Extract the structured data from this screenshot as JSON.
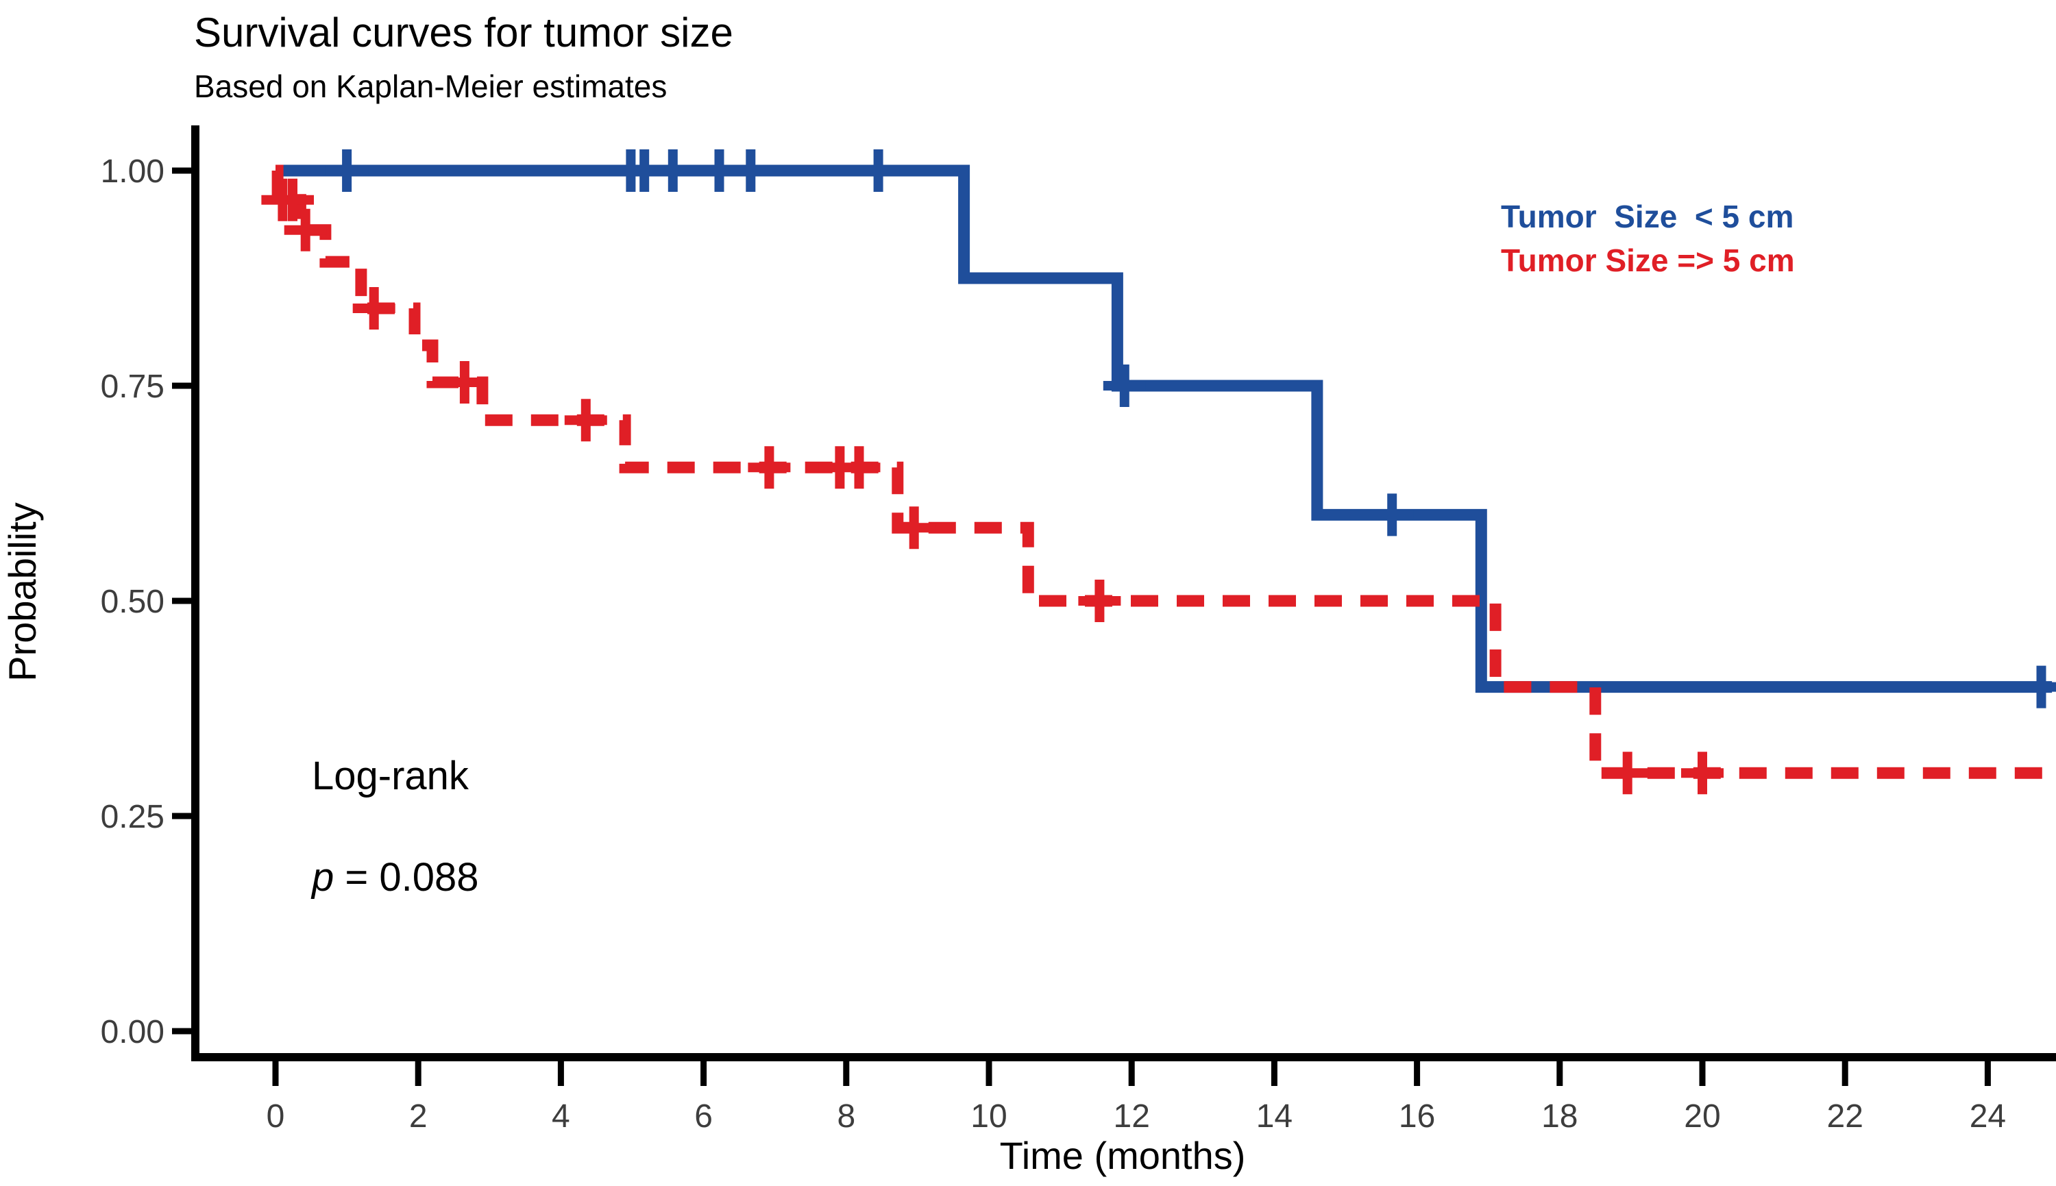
{
  "chart_data": {
    "type": "line",
    "subtype": "kaplan-meier-step",
    "title": "Survival curves for tumor size",
    "subtitle": "Based on Kaplan-Meier estimates",
    "xlabel": "Time (months)",
    "ylabel": "Probability",
    "xlim": [
      -1.1,
      25.0
    ],
    "ylim": [
      0,
      1.0
    ],
    "x_ticks": [
      0,
      2,
      4,
      6,
      8,
      10,
      12,
      14,
      16,
      18,
      20,
      22,
      24
    ],
    "y_ticks": [
      {
        "value": 1.0,
        "label": "1.00"
      },
      {
        "value": 0.75,
        "label": "0.75"
      },
      {
        "value": 0.5,
        "label": "0.50"
      },
      {
        "value": 0.25,
        "label": "0.25"
      },
      {
        "value": 0.0,
        "label": "0.00"
      }
    ],
    "grid": false,
    "legend_position": "inside-top-right",
    "annotation": {
      "line1": "Log-rank",
      "p_symbol": "p",
      "p_value": " = 0.088"
    },
    "series": [
      {
        "name": "Tumor  Size  < 5 cm",
        "color": "#1f4e9b",
        "line_style": "solid",
        "steps": [
          [
            0,
            1
          ],
          [
            9.65,
            1
          ],
          [
            9.65,
            0.875
          ],
          [
            11.8,
            0.875
          ],
          [
            11.8,
            0.75
          ],
          [
            14.6,
            0.75
          ],
          [
            14.6,
            0.6
          ],
          [
            16.9,
            0.6
          ],
          [
            16.9,
            0.4
          ],
          [
            24.9,
            0.4
          ]
        ],
        "censor_marks": [
          [
            1.0,
            1
          ],
          [
            4.98,
            1
          ],
          [
            5.17,
            1
          ],
          [
            5.57,
            1
          ],
          [
            6.22,
            1
          ],
          [
            6.66,
            1
          ],
          [
            8.45,
            1
          ],
          [
            11.9,
            0.75
          ],
          [
            15.65,
            0.6
          ],
          [
            24.75,
            0.4
          ]
        ]
      },
      {
        "name": "Tumor Size => 5 cm",
        "color": "#e01f26",
        "line_style": "dashed",
        "steps": [
          [
            0,
            1
          ],
          [
            0.03,
            1
          ],
          [
            0.03,
            0.966
          ],
          [
            0.35,
            0.966
          ],
          [
            0.35,
            0.931
          ],
          [
            0.7,
            0.931
          ],
          [
            0.7,
            0.894
          ],
          [
            1.2,
            0.894
          ],
          [
            1.2,
            0.84
          ],
          [
            1.95,
            0.84
          ],
          [
            1.95,
            0.797
          ],
          [
            2.2,
            0.797
          ],
          [
            2.2,
            0.754
          ],
          [
            2.9,
            0.754
          ],
          [
            2.9,
            0.71
          ],
          [
            4.9,
            0.71
          ],
          [
            4.9,
            0.655
          ],
          [
            8.72,
            0.655
          ],
          [
            8.72,
            0.585
          ],
          [
            10.55,
            0.585
          ],
          [
            10.55,
            0.5
          ],
          [
            17.1,
            0.5
          ],
          [
            17.1,
            0.4
          ],
          [
            18.5,
            0.4
          ],
          [
            18.5,
            0.3
          ],
          [
            24.95,
            0.3
          ]
        ],
        "censor_marks": [
          [
            0.1,
            0.966
          ],
          [
            0.24,
            0.966
          ],
          [
            0.42,
            0.931
          ],
          [
            1.38,
            0.84
          ],
          [
            2.65,
            0.754
          ],
          [
            4.35,
            0.71
          ],
          [
            6.92,
            0.655
          ],
          [
            7.91,
            0.655
          ],
          [
            8.18,
            0.655
          ],
          [
            8.95,
            0.585
          ],
          [
            11.55,
            0.5
          ],
          [
            18.95,
            0.3
          ],
          [
            20.0,
            0.3
          ]
        ]
      }
    ],
    "colors": {
      "axis": "#000000",
      "tick_label": "#3d3d3d",
      "text": "#000000"
    }
  }
}
